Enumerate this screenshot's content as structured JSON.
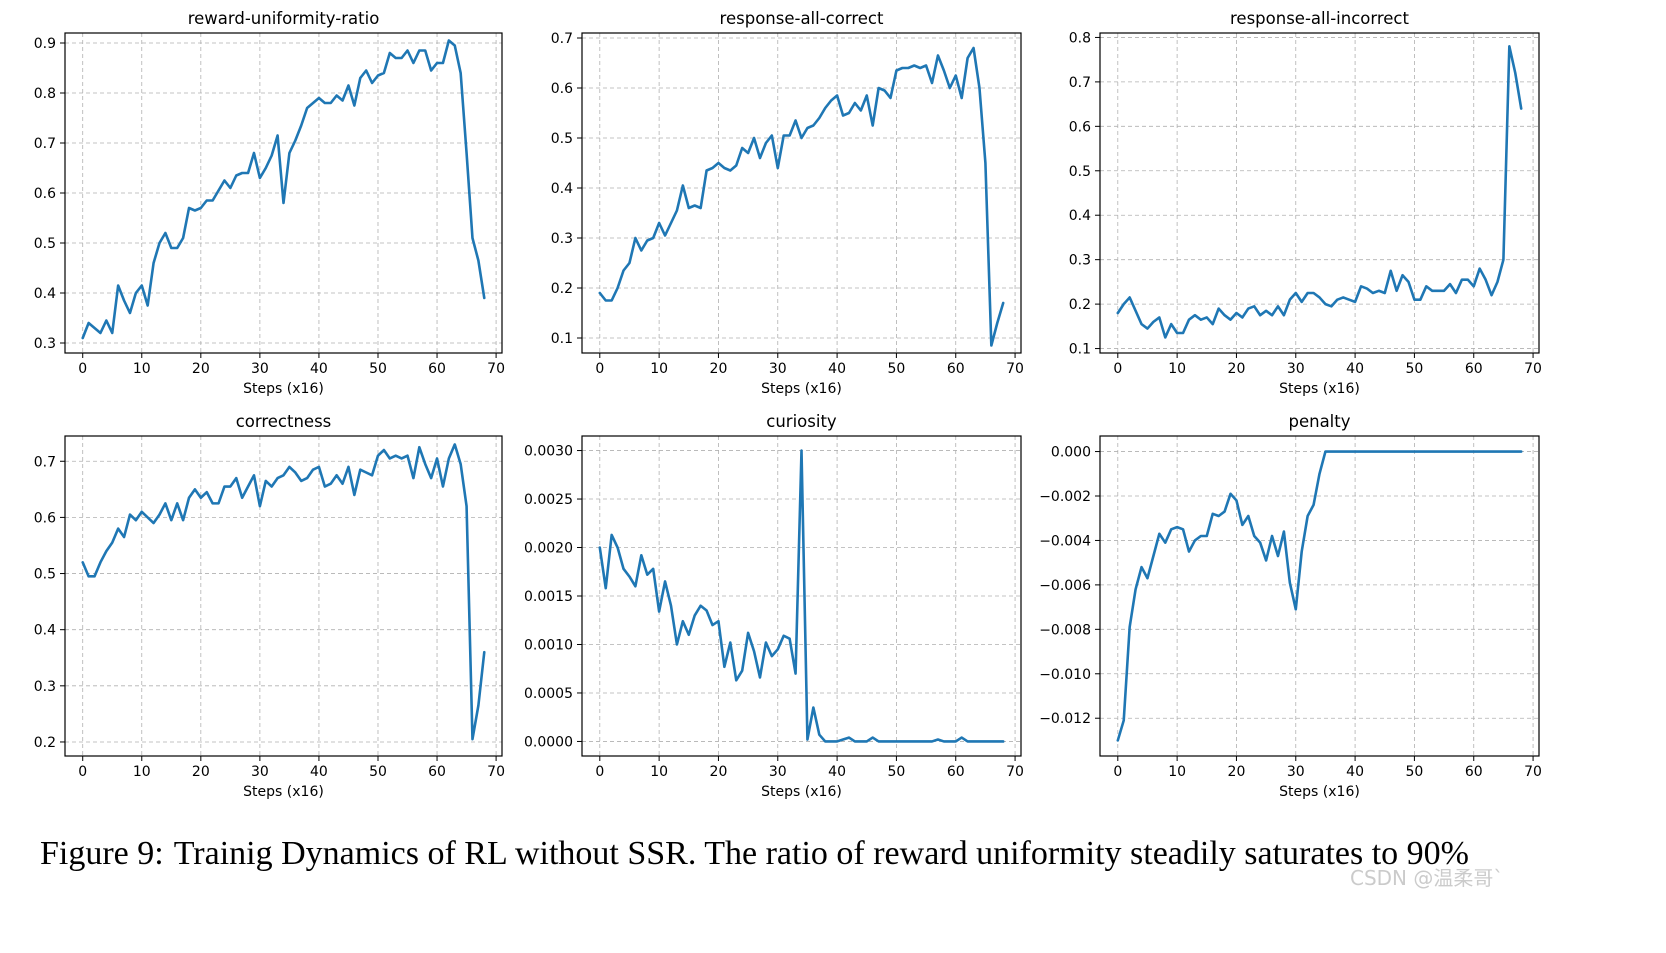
{
  "caption": {
    "label": "Figure 9:",
    "text": "Trainig Dynamics of RL without SSR. The ratio of reward uniformity steadily saturates to 90%"
  },
  "watermark": "CSDN @温柔哥`",
  "colors": {
    "line": "#1f77b4",
    "grid": "#b0b0b0",
    "axis": "#000000"
  },
  "chart_data": [
    {
      "type": "line",
      "title": "reward-uniformity-ratio",
      "xlabel": "Steps (x16)",
      "ylabel": "",
      "grid": true,
      "xlim": [
        -3,
        71
      ],
      "ylim": [
        0.28,
        0.92
      ],
      "xticks": [
        0,
        10,
        20,
        30,
        40,
        50,
        60,
        70
      ],
      "yticks": [
        0.3,
        0.4,
        0.5,
        0.6,
        0.7,
        0.8,
        0.9
      ],
      "ytick_labels": [
        "0.3",
        "0.4",
        "0.5",
        "0.6",
        "0.7",
        "0.8",
        "0.9"
      ],
      "x": [
        0,
        1,
        2,
        3,
        4,
        5,
        6,
        7,
        8,
        9,
        10,
        11,
        12,
        13,
        14,
        15,
        16,
        17,
        18,
        19,
        20,
        21,
        22,
        23,
        24,
        25,
        26,
        27,
        28,
        29,
        30,
        31,
        32,
        33,
        34,
        35,
        36,
        37,
        38,
        39,
        40,
        41,
        42,
        43,
        44,
        45,
        46,
        47,
        48,
        49,
        50,
        51,
        52,
        53,
        54,
        55,
        56,
        57,
        58,
        59,
        60,
        61,
        62,
        63,
        64,
        65,
        66,
        67,
        68
      ],
      "series": [
        {
          "values": [
            0.31,
            0.34,
            0.33,
            0.32,
            0.345,
            0.32,
            0.415,
            0.385,
            0.36,
            0.4,
            0.415,
            0.375,
            0.46,
            0.5,
            0.52,
            0.49,
            0.49,
            0.51,
            0.57,
            0.565,
            0.57,
            0.585,
            0.585,
            0.605,
            0.625,
            0.61,
            0.635,
            0.64,
            0.64,
            0.68,
            0.63,
            0.65,
            0.675,
            0.715,
            0.58,
            0.68,
            0.705,
            0.735,
            0.77,
            0.78,
            0.79,
            0.78,
            0.78,
            0.795,
            0.785,
            0.815,
            0.775,
            0.83,
            0.845,
            0.82,
            0.835,
            0.84,
            0.88,
            0.87,
            0.87,
            0.885,
            0.86,
            0.885,
            0.885,
            0.845,
            0.86,
            0.86,
            0.905,
            0.895,
            0.84,
            0.68,
            0.51,
            0.465,
            0.39
          ]
        }
      ]
    },
    {
      "type": "line",
      "title": "response-all-correct",
      "xlabel": "Steps (x16)",
      "ylabel": "",
      "grid": true,
      "xlim": [
        -3,
        71
      ],
      "ylim": [
        0.07,
        0.71
      ],
      "xticks": [
        0,
        10,
        20,
        30,
        40,
        50,
        60,
        70
      ],
      "yticks": [
        0.1,
        0.2,
        0.3,
        0.4,
        0.5,
        0.6,
        0.7
      ],
      "ytick_labels": [
        "0.1",
        "0.2",
        "0.3",
        "0.4",
        "0.5",
        "0.6",
        "0.7"
      ],
      "x": [
        0,
        1,
        2,
        3,
        4,
        5,
        6,
        7,
        8,
        9,
        10,
        11,
        12,
        13,
        14,
        15,
        16,
        17,
        18,
        19,
        20,
        21,
        22,
        23,
        24,
        25,
        26,
        27,
        28,
        29,
        30,
        31,
        32,
        33,
        34,
        35,
        36,
        37,
        38,
        39,
        40,
        41,
        42,
        43,
        44,
        45,
        46,
        47,
        48,
        49,
        50,
        51,
        52,
        53,
        54,
        55,
        56,
        57,
        58,
        59,
        60,
        61,
        62,
        63,
        64,
        65,
        66,
        67,
        68
      ],
      "series": [
        {
          "values": [
            0.19,
            0.175,
            0.175,
            0.2,
            0.235,
            0.25,
            0.3,
            0.275,
            0.295,
            0.3,
            0.33,
            0.305,
            0.33,
            0.355,
            0.405,
            0.36,
            0.365,
            0.36,
            0.435,
            0.44,
            0.45,
            0.44,
            0.435,
            0.445,
            0.48,
            0.47,
            0.5,
            0.46,
            0.49,
            0.505,
            0.44,
            0.505,
            0.505,
            0.535,
            0.5,
            0.52,
            0.525,
            0.54,
            0.56,
            0.575,
            0.585,
            0.545,
            0.55,
            0.57,
            0.555,
            0.585,
            0.525,
            0.6,
            0.595,
            0.58,
            0.635,
            0.64,
            0.64,
            0.645,
            0.64,
            0.645,
            0.61,
            0.665,
            0.635,
            0.6,
            0.625,
            0.58,
            0.66,
            0.68,
            0.6,
            0.45,
            0.085,
            0.13,
            0.17
          ]
        }
      ]
    },
    {
      "type": "line",
      "title": "response-all-incorrect",
      "xlabel": "Steps (x16)",
      "ylabel": "",
      "grid": true,
      "xlim": [
        -3,
        71
      ],
      "ylim": [
        0.09,
        0.81
      ],
      "xticks": [
        0,
        10,
        20,
        30,
        40,
        50,
        60,
        70
      ],
      "yticks": [
        0.1,
        0.2,
        0.3,
        0.4,
        0.5,
        0.6,
        0.7,
        0.8
      ],
      "ytick_labels": [
        "0.1",
        "0.2",
        "0.3",
        "0.4",
        "0.5",
        "0.6",
        "0.7",
        "0.8"
      ],
      "x": [
        0,
        1,
        2,
        3,
        4,
        5,
        6,
        7,
        8,
        9,
        10,
        11,
        12,
        13,
        14,
        15,
        16,
        17,
        18,
        19,
        20,
        21,
        22,
        23,
        24,
        25,
        26,
        27,
        28,
        29,
        30,
        31,
        32,
        33,
        34,
        35,
        36,
        37,
        38,
        39,
        40,
        41,
        42,
        43,
        44,
        45,
        46,
        47,
        48,
        49,
        50,
        51,
        52,
        53,
        54,
        55,
        56,
        57,
        58,
        59,
        60,
        61,
        62,
        63,
        64,
        65,
        66,
        67,
        68
      ],
      "series": [
        {
          "values": [
            0.18,
            0.2,
            0.215,
            0.185,
            0.155,
            0.145,
            0.16,
            0.17,
            0.125,
            0.155,
            0.135,
            0.135,
            0.165,
            0.175,
            0.165,
            0.17,
            0.155,
            0.19,
            0.175,
            0.165,
            0.18,
            0.17,
            0.19,
            0.195,
            0.175,
            0.185,
            0.175,
            0.195,
            0.175,
            0.21,
            0.225,
            0.205,
            0.225,
            0.225,
            0.215,
            0.2,
            0.195,
            0.21,
            0.215,
            0.21,
            0.205,
            0.24,
            0.235,
            0.225,
            0.23,
            0.225,
            0.275,
            0.23,
            0.265,
            0.25,
            0.21,
            0.21,
            0.24,
            0.23,
            0.23,
            0.23,
            0.245,
            0.225,
            0.255,
            0.255,
            0.24,
            0.28,
            0.255,
            0.22,
            0.25,
            0.3,
            0.78,
            0.72,
            0.64
          ]
        }
      ]
    },
    {
      "type": "line",
      "title": "correctness",
      "xlabel": "Steps (x16)",
      "ylabel": "",
      "grid": true,
      "xlim": [
        -3,
        71
      ],
      "ylim": [
        0.175,
        0.745
      ],
      "xticks": [
        0,
        10,
        20,
        30,
        40,
        50,
        60,
        70
      ],
      "yticks": [
        0.2,
        0.3,
        0.4,
        0.5,
        0.6,
        0.7
      ],
      "ytick_labels": [
        "0.2",
        "0.3",
        "0.4",
        "0.5",
        "0.6",
        "0.7"
      ],
      "x": [
        0,
        1,
        2,
        3,
        4,
        5,
        6,
        7,
        8,
        9,
        10,
        11,
        12,
        13,
        14,
        15,
        16,
        17,
        18,
        19,
        20,
        21,
        22,
        23,
        24,
        25,
        26,
        27,
        28,
        29,
        30,
        31,
        32,
        33,
        34,
        35,
        36,
        37,
        38,
        39,
        40,
        41,
        42,
        43,
        44,
        45,
        46,
        47,
        48,
        49,
        50,
        51,
        52,
        53,
        54,
        55,
        56,
        57,
        58,
        59,
        60,
        61,
        62,
        63,
        64,
        65,
        66,
        67,
        68
      ],
      "series": [
        {
          "values": [
            0.52,
            0.495,
            0.495,
            0.52,
            0.54,
            0.555,
            0.58,
            0.565,
            0.605,
            0.595,
            0.61,
            0.6,
            0.59,
            0.605,
            0.625,
            0.595,
            0.625,
            0.595,
            0.635,
            0.65,
            0.635,
            0.645,
            0.625,
            0.625,
            0.655,
            0.655,
            0.67,
            0.635,
            0.655,
            0.675,
            0.62,
            0.665,
            0.655,
            0.67,
            0.675,
            0.69,
            0.68,
            0.665,
            0.67,
            0.685,
            0.69,
            0.655,
            0.66,
            0.675,
            0.66,
            0.69,
            0.64,
            0.685,
            0.68,
            0.675,
            0.71,
            0.72,
            0.705,
            0.71,
            0.705,
            0.71,
            0.67,
            0.725,
            0.695,
            0.67,
            0.705,
            0.655,
            0.705,
            0.73,
            0.695,
            0.62,
            0.205,
            0.265,
            0.36
          ]
        }
      ]
    },
    {
      "type": "line",
      "title": "curiosity",
      "xlabel": "Steps (x16)",
      "ylabel": "",
      "grid": true,
      "xlim": [
        -3,
        71
      ],
      "ylim": [
        -0.00015,
        0.00315
      ],
      "xticks": [
        0,
        10,
        20,
        30,
        40,
        50,
        60,
        70
      ],
      "yticks": [
        0,
        0.0005,
        0.001,
        0.0015,
        0.002,
        0.0025,
        0.003
      ],
      "ytick_labels": [
        "0.0000",
        "0.0005",
        "0.0010",
        "0.0015",
        "0.0020",
        "0.0025",
        "0.0030"
      ],
      "x": [
        0,
        1,
        2,
        3,
        4,
        5,
        6,
        7,
        8,
        9,
        10,
        11,
        12,
        13,
        14,
        15,
        16,
        17,
        18,
        19,
        20,
        21,
        22,
        23,
        24,
        25,
        26,
        27,
        28,
        29,
        30,
        31,
        32,
        33,
        34,
        35,
        36,
        37,
        38,
        39,
        40,
        41,
        42,
        43,
        44,
        45,
        46,
        47,
        48,
        49,
        50,
        51,
        52,
        53,
        54,
        55,
        56,
        57,
        58,
        59,
        60,
        61,
        62,
        63,
        64,
        65,
        66,
        67,
        68
      ],
      "series": [
        {
          "values": [
            0.002,
            0.00158,
            0.00213,
            0.002,
            0.00178,
            0.0017,
            0.0016,
            0.00192,
            0.00172,
            0.00178,
            0.00134,
            0.00165,
            0.0014,
            0.001,
            0.00124,
            0.0011,
            0.0013,
            0.0014,
            0.00135,
            0.0012,
            0.00124,
            0.00077,
            0.00102,
            0.00063,
            0.00073,
            0.00112,
            0.00093,
            0.00066,
            0.00102,
            0.00088,
            0.00095,
            0.00109,
            0.00106,
            0.0007,
            0.003,
            2e-05,
            0.00035,
            7e-05,
            0,
            0,
            0,
            2e-05,
            4e-05,
            0,
            0,
            0,
            4e-05,
            0,
            0,
            0,
            0,
            0,
            0,
            0,
            0,
            0,
            0,
            2e-05,
            0,
            0,
            0,
            4e-05,
            0,
            0,
            0,
            0,
            0,
            0,
            0
          ]
        }
      ]
    },
    {
      "type": "line",
      "title": "penalty",
      "xlabel": "Steps (x16)",
      "ylabel": "",
      "grid": true,
      "xlim": [
        -3,
        71
      ],
      "ylim": [
        -0.0137,
        0.0007
      ],
      "xticks": [
        0,
        10,
        20,
        30,
        40,
        50,
        60,
        70
      ],
      "yticks": [
        -0.012,
        -0.01,
        -0.008,
        -0.006,
        -0.004,
        -0.002,
        0
      ],
      "ytick_labels": [
        "−0.012",
        "−0.010",
        "−0.008",
        "−0.006",
        "−0.004",
        "−0.002",
        "0.000"
      ],
      "x": [
        0,
        1,
        2,
        3,
        4,
        5,
        6,
        7,
        8,
        9,
        10,
        11,
        12,
        13,
        14,
        15,
        16,
        17,
        18,
        19,
        20,
        21,
        22,
        23,
        24,
        25,
        26,
        27,
        28,
        29,
        30,
        31,
        32,
        33,
        34,
        35,
        36,
        37,
        38,
        39,
        40,
        41,
        42,
        43,
        44,
        45,
        46,
        47,
        48,
        49,
        50,
        51,
        52,
        53,
        54,
        55,
        56,
        57,
        58,
        59,
        60,
        61,
        62,
        63,
        64,
        65,
        66,
        67,
        68
      ],
      "series": [
        {
          "values": [
            -0.013,
            -0.0121,
            -0.0079,
            -0.0062,
            -0.0052,
            -0.0057,
            -0.0047,
            -0.0037,
            -0.0041,
            -0.0035,
            -0.0034,
            -0.0035,
            -0.0045,
            -0.004,
            -0.0038,
            -0.0038,
            -0.0028,
            -0.0029,
            -0.0027,
            -0.0019,
            -0.0022,
            -0.0033,
            -0.0029,
            -0.0038,
            -0.0041,
            -0.0049,
            -0.0038,
            -0.0047,
            -0.0036,
            -0.0059,
            -0.0071,
            -0.0045,
            -0.0029,
            -0.0024,
            -0.001,
            0,
            0,
            0,
            0,
            0,
            0,
            0,
            0,
            0,
            0,
            0,
            0,
            0,
            0,
            0,
            0,
            0,
            0,
            0,
            0,
            0,
            0,
            0,
            0,
            0,
            0,
            0,
            0,
            0,
            0,
            0,
            0,
            0,
            0
          ]
        }
      ]
    }
  ]
}
